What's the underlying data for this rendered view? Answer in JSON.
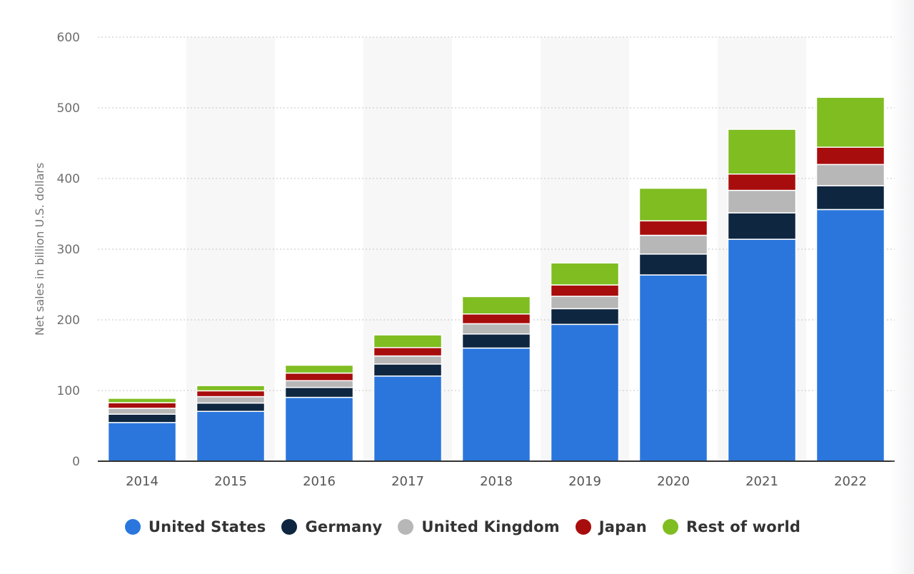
{
  "chart_data": {
    "type": "bar",
    "stacked": true,
    "categories": [
      "2014",
      "2015",
      "2016",
      "2017",
      "2018",
      "2019",
      "2020",
      "2021",
      "2022"
    ],
    "ylabel": "Net sales in billion U.S. dollars",
    "xlabel": "",
    "ylim": [
      0,
      600
    ],
    "yticks": [
      0,
      100,
      200,
      300,
      400,
      500,
      600
    ],
    "grid": true,
    "legend_position": "bottom",
    "series": [
      {
        "name": "United States",
        "color": "#2a76dd",
        "values": [
          54.7,
          70.5,
          90.3,
          120.5,
          160.1,
          193.6,
          263.5,
          314.0,
          356.1
        ]
      },
      {
        "name": "Germany",
        "color": "#0e2640",
        "values": [
          11.9,
          11.8,
          14.1,
          17.0,
          19.9,
          22.2,
          29.6,
          37.3,
          33.6
        ]
      },
      {
        "name": "United Kingdom",
        "color": "#b7b7b7",
        "values": [
          8.3,
          9.0,
          9.5,
          11.4,
          14.5,
          17.5,
          26.5,
          31.9,
          30.1
        ]
      },
      {
        "name": "Japan",
        "color": "#a80d0d",
        "values": [
          7.9,
          8.3,
          10.8,
          11.9,
          13.8,
          16.0,
          20.5,
          23.1,
          24.4
        ]
      },
      {
        "name": "Rest of world",
        "color": "#7fbd21",
        "values": [
          6.2,
          7.4,
          11.1,
          17.9,
          24.6,
          31.2,
          46.1,
          63.3,
          70.7
        ]
      }
    ]
  }
}
